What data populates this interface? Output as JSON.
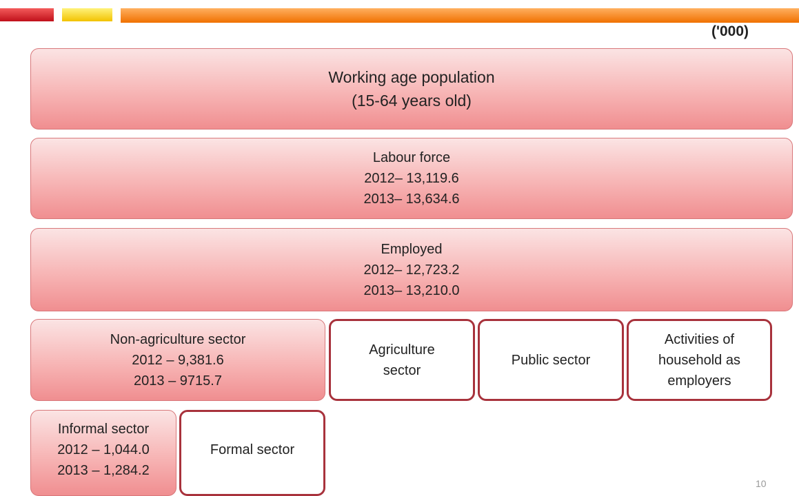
{
  "units": "('000)",
  "page_number": "10",
  "nodes": [
    {
      "lines": [
        "Working age population",
        "(15-64 years old)"
      ]
    },
    {
      "lines": [
        "Labour force",
        "2012– 13,119.6",
        "2013– 13,634.6"
      ]
    },
    {
      "lines": [
        "Employed",
        "2012– 12,723.2",
        "2013– 13,210.0"
      ]
    },
    {
      "lines": [
        "Non-agriculture sector",
        "2012 – 9,381.6",
        "2013 – 9715.7"
      ]
    },
    {
      "lines": [
        "Agriculture",
        "sector"
      ]
    },
    {
      "lines": [
        "Public sector"
      ]
    },
    {
      "lines": [
        "Activities of",
        "household as",
        "employers"
      ]
    },
    {
      "lines": [
        "Informal sector",
        "2012 – 1,044.0",
        "2013 – 1,284.2"
      ]
    },
    {
      "lines": [
        "Formal sector"
      ]
    }
  ]
}
